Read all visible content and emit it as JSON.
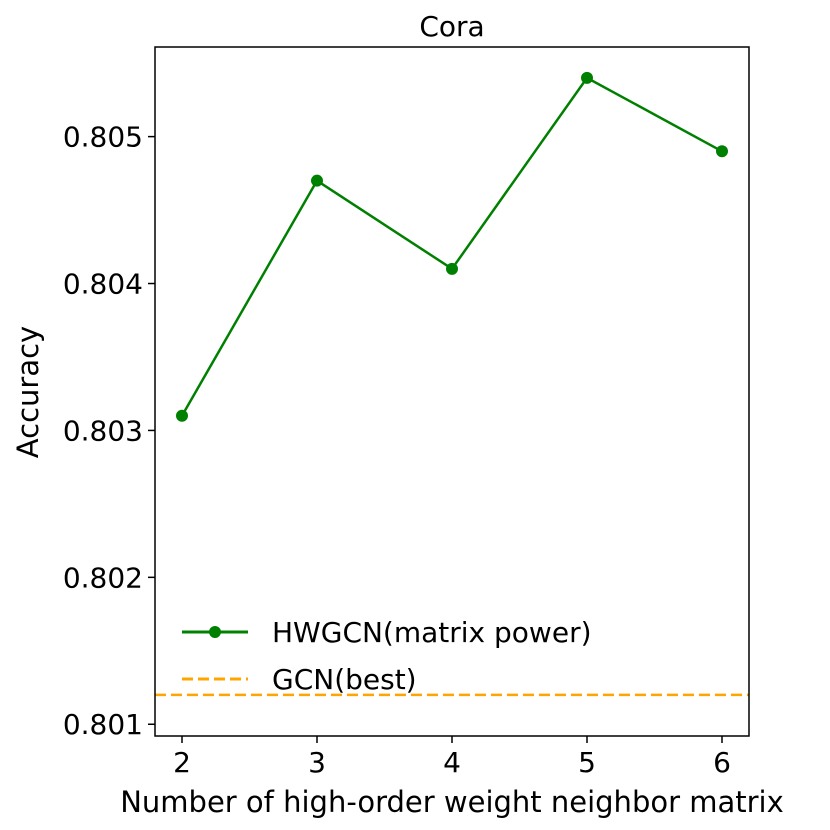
{
  "chart_data": {
    "type": "line",
    "title": "Cora",
    "xlabel": "Number of high-order weight neighbor matrix",
    "ylabel": "Accuracy",
    "x": [
      2,
      3,
      4,
      5,
      6
    ],
    "xlim": [
      1.8,
      6.2
    ],
    "ylim": [
      0.80092,
      0.80561
    ],
    "xticks": [
      "2",
      "3",
      "4",
      "5",
      "6"
    ],
    "yticks": [
      "0.801",
      "0.802",
      "0.803",
      "0.804",
      "0.805"
    ],
    "grid": false,
    "legend_position": "lower-left",
    "series": [
      {
        "name": "HWGCN(matrix power)",
        "values": [
          0.8031,
          0.8047,
          0.8041,
          0.8054,
          0.8049
        ],
        "color": "#008000",
        "style": "solid",
        "marker": "circle"
      },
      {
        "name": "GCN(best)",
        "values": [
          0.8012,
          0.8012,
          0.8012,
          0.8012,
          0.8012
        ],
        "color": "#ffa500",
        "style": "dashed",
        "marker": "none"
      }
    ]
  }
}
